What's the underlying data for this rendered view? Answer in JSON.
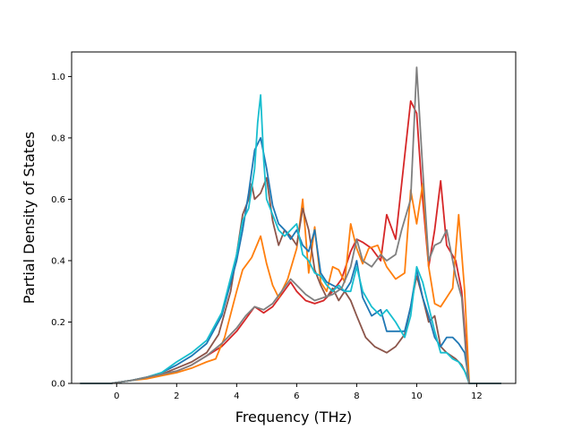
{
  "chart_data": {
    "type": "line",
    "title": "",
    "xlabel": "Frequency (THz)",
    "ylabel": "Partial Density of States",
    "xlim": [
      -1.5,
      13.3
    ],
    "ylim": [
      0.0,
      1.08
    ],
    "xticks": [
      0,
      2,
      4,
      6,
      8,
      10,
      12
    ],
    "yticks": [
      0.0,
      0.2,
      0.4,
      0.6,
      0.8,
      1.0
    ],
    "ytick_labels": [
      "0.0",
      "0.2",
      "0.4",
      "0.6",
      "0.8",
      "1.0"
    ],
    "grid": false,
    "legend": "none",
    "series": [
      {
        "color": "#d62728",
        "x": [
          -1.2,
          -0.2,
          0.5,
          1,
          1.5,
          2,
          2.5,
          3,
          3.5,
          4,
          4.3,
          4.6,
          4.9,
          5.2,
          5.5,
          5.8,
          6,
          6.3,
          6.6,
          6.9,
          7.2,
          7.5,
          7.8,
          8,
          8.2,
          8.5,
          8.8,
          9,
          9.3,
          9.5,
          9.8,
          10,
          10.2,
          10.4,
          10.6,
          10.8,
          11,
          11.3,
          11.5,
          11.7,
          11.75,
          12.8
        ],
        "y": [
          0,
          0,
          0.01,
          0.02,
          0.03,
          0.04,
          0.06,
          0.09,
          0.12,
          0.17,
          0.21,
          0.25,
          0.23,
          0.25,
          0.29,
          0.33,
          0.3,
          0.27,
          0.26,
          0.27,
          0.3,
          0.34,
          0.43,
          0.47,
          0.46,
          0.44,
          0.4,
          0.55,
          0.47,
          0.65,
          0.92,
          0.88,
          0.6,
          0.38,
          0.5,
          0.66,
          0.45,
          0.4,
          0.3,
          0.05,
          0,
          0
        ]
      },
      {
        "color": "#ff7f0e",
        "x": [
          -1.2,
          -0.2,
          0.5,
          1,
          1.5,
          2,
          2.5,
          3,
          3.3,
          3.6,
          4,
          4.2,
          4.5,
          4.8,
          5,
          5.2,
          5.4,
          5.7,
          6,
          6.2,
          6.4,
          6.6,
          6.8,
          7,
          7.2,
          7.4,
          7.6,
          7.8,
          8,
          8.2,
          8.4,
          8.7,
          9,
          9.3,
          9.6,
          9.8,
          10,
          10.2,
          10.4,
          10.6,
          10.8,
          11,
          11.2,
          11.4,
          11.6,
          11.75,
          12.8
        ],
        "y": [
          0,
          0,
          0.01,
          0.015,
          0.025,
          0.035,
          0.05,
          0.07,
          0.08,
          0.15,
          0.3,
          0.37,
          0.41,
          0.48,
          0.39,
          0.32,
          0.28,
          0.34,
          0.44,
          0.6,
          0.36,
          0.51,
          0.33,
          0.3,
          0.38,
          0.37,
          0.33,
          0.52,
          0.44,
          0.39,
          0.44,
          0.45,
          0.38,
          0.34,
          0.36,
          0.63,
          0.52,
          0.65,
          0.38,
          0.26,
          0.25,
          0.28,
          0.31,
          0.55,
          0.3,
          0,
          0
        ]
      },
      {
        "color": "#8c564b",
        "x": [
          -1.2,
          -0.2,
          0.5,
          1,
          1.5,
          2,
          2.5,
          3,
          3.4,
          3.8,
          4,
          4.2,
          4.4,
          4.5,
          4.6,
          4.8,
          5,
          5.2,
          5.4,
          5.6,
          5.8,
          6,
          6.2,
          6.4,
          6.6,
          6.8,
          7,
          7.2,
          7.4,
          7.6,
          7.8,
          8,
          8.3,
          8.6,
          9,
          9.3,
          9.6,
          9.8,
          10,
          10.2,
          10.4,
          10.6,
          10.8,
          11,
          11.3,
          11.5,
          11.7,
          11.75,
          12.8
        ],
        "y": [
          0,
          0,
          0.01,
          0.02,
          0.03,
          0.05,
          0.07,
          0.1,
          0.16,
          0.3,
          0.42,
          0.55,
          0.6,
          0.65,
          0.6,
          0.62,
          0.67,
          0.53,
          0.45,
          0.5,
          0.48,
          0.45,
          0.57,
          0.5,
          0.37,
          0.32,
          0.28,
          0.31,
          0.27,
          0.3,
          0.27,
          0.22,
          0.15,
          0.12,
          0.1,
          0.12,
          0.16,
          0.25,
          0.35,
          0.28,
          0.2,
          0.22,
          0.12,
          0.1,
          0.08,
          0.06,
          0.02,
          0,
          0
        ]
      },
      {
        "color": "#1f77b4",
        "x": [
          -1.2,
          -0.2,
          0.5,
          1,
          1.5,
          2,
          2.5,
          3,
          3.5,
          4,
          4.2,
          4.4,
          4.6,
          4.8,
          5,
          5.2,
          5.4,
          5.6,
          5.8,
          6,
          6.2,
          6.4,
          6.6,
          6.8,
          7,
          7.2,
          7.4,
          7.6,
          7.8,
          8,
          8.2,
          8.5,
          8.8,
          9,
          9.3,
          9.6,
          9.8,
          10,
          10.2,
          10.4,
          10.6,
          10.8,
          11,
          11.2,
          11.4,
          11.6,
          11.75,
          12.8
        ],
        "y": [
          0,
          0,
          0.01,
          0.02,
          0.035,
          0.06,
          0.09,
          0.13,
          0.22,
          0.4,
          0.5,
          0.62,
          0.76,
          0.8,
          0.7,
          0.58,
          0.52,
          0.5,
          0.47,
          0.5,
          0.45,
          0.43,
          0.5,
          0.36,
          0.33,
          0.32,
          0.31,
          0.3,
          0.33,
          0.4,
          0.28,
          0.22,
          0.24,
          0.17,
          0.17,
          0.17,
          0.25,
          0.37,
          0.28,
          0.22,
          0.15,
          0.12,
          0.15,
          0.15,
          0.13,
          0.1,
          0,
          0
        ]
      },
      {
        "color": "#17becf",
        "x": [
          -1.2,
          -0.2,
          0.5,
          1,
          1.5,
          2,
          2.5,
          3,
          3.5,
          4,
          4.2,
          4.4,
          4.6,
          4.7,
          4.8,
          4.9,
          5,
          5.2,
          5.4,
          5.6,
          5.8,
          6,
          6.2,
          6.4,
          6.6,
          6.8,
          7,
          7.2,
          7.4,
          7.6,
          7.8,
          8,
          8.2,
          8.5,
          8.8,
          9,
          9.3,
          9.6,
          9.8,
          10,
          10.2,
          10.4,
          10.6,
          10.8,
          11,
          11.2,
          11.4,
          11.6,
          11.75,
          12.8
        ],
        "y": [
          0,
          0,
          0.01,
          0.02,
          0.035,
          0.07,
          0.1,
          0.14,
          0.23,
          0.42,
          0.53,
          0.57,
          0.7,
          0.85,
          0.94,
          0.73,
          0.6,
          0.55,
          0.5,
          0.48,
          0.5,
          0.52,
          0.42,
          0.4,
          0.36,
          0.35,
          0.32,
          0.3,
          0.32,
          0.3,
          0.3,
          0.38,
          0.3,
          0.25,
          0.22,
          0.24,
          0.2,
          0.15,
          0.22,
          0.38,
          0.33,
          0.25,
          0.17,
          0.1,
          0.1,
          0.08,
          0.07,
          0.04,
          0,
          0
        ]
      },
      {
        "color": "#7f7f7f",
        "x": [
          -1.2,
          -0.2,
          0.5,
          1,
          1.5,
          2,
          2.5,
          3,
          3.5,
          4,
          4.3,
          4.6,
          4.9,
          5.2,
          5.5,
          5.8,
          6,
          6.3,
          6.6,
          6.9,
          7.2,
          7.5,
          7.8,
          8,
          8.2,
          8.5,
          8.8,
          9,
          9.3,
          9.5,
          9.8,
          10,
          10.2,
          10.4,
          10.6,
          10.8,
          11,
          11.3,
          11.5,
          11.7,
          11.75,
          12.8
        ],
        "y": [
          0,
          0,
          0.01,
          0.02,
          0.03,
          0.04,
          0.06,
          0.09,
          0.13,
          0.18,
          0.22,
          0.25,
          0.24,
          0.26,
          0.3,
          0.34,
          0.32,
          0.29,
          0.27,
          0.28,
          0.29,
          0.31,
          0.38,
          0.47,
          0.4,
          0.38,
          0.42,
          0.4,
          0.42,
          0.5,
          0.6,
          1.03,
          0.7,
          0.4,
          0.45,
          0.46,
          0.5,
          0.35,
          0.28,
          0.02,
          0,
          0
        ]
      }
    ]
  }
}
